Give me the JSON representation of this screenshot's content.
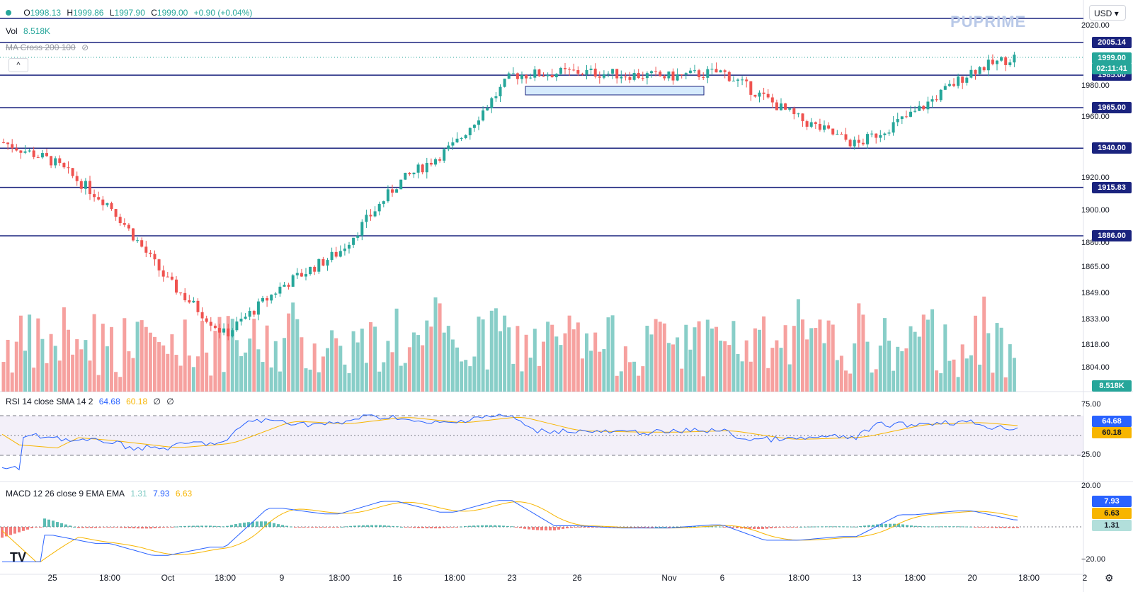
{
  "ohlc_legend": {
    "open_label": "O",
    "open": "1998.13",
    "high_label": "H",
    "high": "1999.86",
    "low_label": "L",
    "low": "1997.90",
    "close_label": "C",
    "close": "1999.00",
    "change": "+0.90 (+0.04%)"
  },
  "vol_legend": {
    "label": "Vol",
    "value": "8.518K"
  },
  "ma_legend": {
    "label": "MA Cross 200 100"
  },
  "rsi_legend": {
    "label": "RSI 14 close SMA 14 2",
    "rsi": "64.68",
    "sma": "60.18",
    "extra1": "∅",
    "extra2": "∅"
  },
  "macd_legend": {
    "label": "MACD 12 26 close 9 EMA EMA",
    "hist": "1.31",
    "macd": "7.93",
    "signal": "6.63"
  },
  "currency": "USD",
  "brand": "PUPRIME",
  "tv_logo": "TV",
  "collapse_icon": "^",
  "settings_icon": "⚙",
  "price_axis_ticks": [
    "2020.00",
    "1980.00",
    "1960.00",
    "1920.00",
    "1900.00",
    "1880.00",
    "1865.00",
    "1849.00",
    "1833.00",
    "1818.00",
    "1804.00"
  ],
  "level_labels": [
    "2005.14",
    "1985.00",
    "1965.00",
    "1940.00",
    "1915.83",
    "1886.00"
  ],
  "current_price": "1999.00",
  "countdown": "02:11:41",
  "volume_label": "8.518K",
  "rsi_axis": [
    "75.00",
    "25.00"
  ],
  "rsi_value": "64.68",
  "rsi_sma_value": "60.18",
  "macd_axis": [
    "20.00",
    "−20.00"
  ],
  "macd_value": "7.93",
  "signal_value": "6.63",
  "hist_value": "1.31",
  "time_axis": [
    "25",
    "18:00",
    "Oct",
    "18:00",
    "9",
    "18:00",
    "16",
    "18:00",
    "23",
    "26",
    "Nov",
    "6",
    "18:00",
    "13",
    "18:00",
    "20",
    "18:00",
    "2"
  ],
  "colors": {
    "up": "#26a69a",
    "down": "#ef5350",
    "levels": "#1a237e",
    "rsi": "#2962ff",
    "sma": "#f7b500",
    "macd": "#2962ff",
    "signal": "#f7b500"
  },
  "chart_data": {
    "type": "candlestick",
    "title": "",
    "horizontal_levels": [
      2005.14,
      1985.0,
      1965.0,
      1940.0,
      1915.83,
      1886.0
    ],
    "current_close": 1999.0,
    "rsi": {
      "value": 64.68,
      "sma": 60.18,
      "upper": 75,
      "lower": 25
    },
    "macd": {
      "macd": 7.93,
      "signal": 6.63,
      "histogram": 1.31,
      "range": [
        -20,
        20
      ]
    },
    "close_path": [
      {
        "x": "25",
        "y": 1932
      },
      {
        "x": "18:00",
        "y": 1905
      },
      {
        "x": "Oct",
        "y": 1858
      },
      {
        "x": "18:00",
        "y": 1825
      },
      {
        "x": "9",
        "y": 1855
      },
      {
        "x": "18:00",
        "y": 1876
      },
      {
        "x": "16",
        "y": 1918
      },
      {
        "x": "18:00",
        "y": 1942
      },
      {
        "x": "23",
        "y": 1985
      },
      {
        "x": "26",
        "y": 1987
      },
      {
        "x": "Nov",
        "y": 1984
      },
      {
        "x": "6",
        "y": 1987
      },
      {
        "x": "18:00",
        "y": 1958
      },
      {
        "x": "13",
        "y": 1942
      },
      {
        "x": "18:00",
        "y": 1962
      },
      {
        "x": "20",
        "y": 1988
      },
      {
        "x": "18:00",
        "y": 1999
      }
    ]
  }
}
